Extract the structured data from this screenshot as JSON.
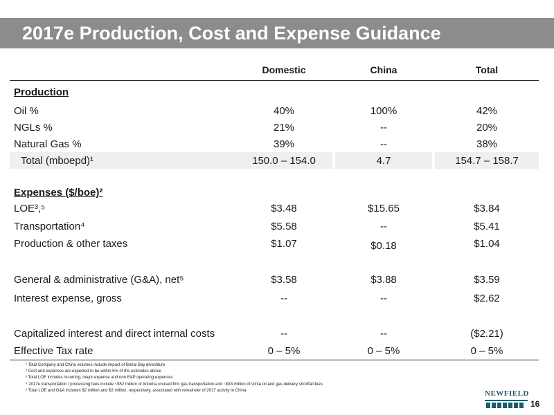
{
  "title": "2017e Production, Cost and Expense Guidance",
  "columns": {
    "domestic": "Domestic",
    "china": "China",
    "total": "Total"
  },
  "production": {
    "heading": "Production",
    "rows": [
      {
        "label": "Oil %",
        "domestic": "40%",
        "china": "100%",
        "total": "42%"
      },
      {
        "label": "NGLs %",
        "domestic": "21%",
        "china": "--",
        "total": "20%"
      },
      {
        "label": "Natural Gas %",
        "domestic": "39%",
        "china": "--",
        "total": "38%"
      },
      {
        "label": "Total (mboepd)¹",
        "domestic": "150.0 – 154.0",
        "china": "4.7",
        "total": "154.7 – 158.7"
      }
    ]
  },
  "expenses": {
    "heading": "Expenses ($/boe)²",
    "rows": [
      {
        "label": "LOE³,⁵",
        "domestic": "$3.48",
        "china": "$15.65",
        "total": "$3.84"
      },
      {
        "label": "Transportation⁴",
        "domestic": "$5.58",
        "china": "--",
        "total": "$5.41"
      },
      {
        "label": "Production & other taxes",
        "domestic": "$1.07",
        "china": "$0.18",
        "total": "$1.04"
      },
      {
        "label": "General & administrative (G&A), net⁵",
        "domestic": "$3.58",
        "china": "$3.88",
        "total": "$3.59"
      },
      {
        "label": "Interest expense, gross",
        "domestic": "--",
        "china": "--",
        "total": "$2.62"
      },
      {
        "label": "Capitalized interest and direct internal costs",
        "domestic": "--",
        "china": "--",
        "total": "($2.21)"
      },
      {
        "label": "Effective Tax rate",
        "domestic": "0 – 5%",
        "china": "0 – 5%",
        "total": "0 – 5%"
      }
    ]
  },
  "footnotes": [
    "¹ Total Company and China volumes include impact of Bohai Bay divestiture",
    "² Cost and expenses are expected to be within 5% of the estimates above",
    "³ Total LOE includes recurring, major expense and non E&P operating expenses",
    "⁴ 2017e transportation / processing fees include ~$52 million of Arkoma unused firm gas transportation and ~$33 million of Uinta oil and gas delivery shortfall fees",
    "⁵ Total LOE and G&A includes $2 million and $2 million, respectively, associated with remainder of 2017 activity in China"
  ],
  "logo_text": "NEWFIELD",
  "page_number": "16",
  "colors": {
    "title_bar": "#8c8c8c",
    "logo": "#1a5d6d",
    "shade": "#efefef"
  }
}
